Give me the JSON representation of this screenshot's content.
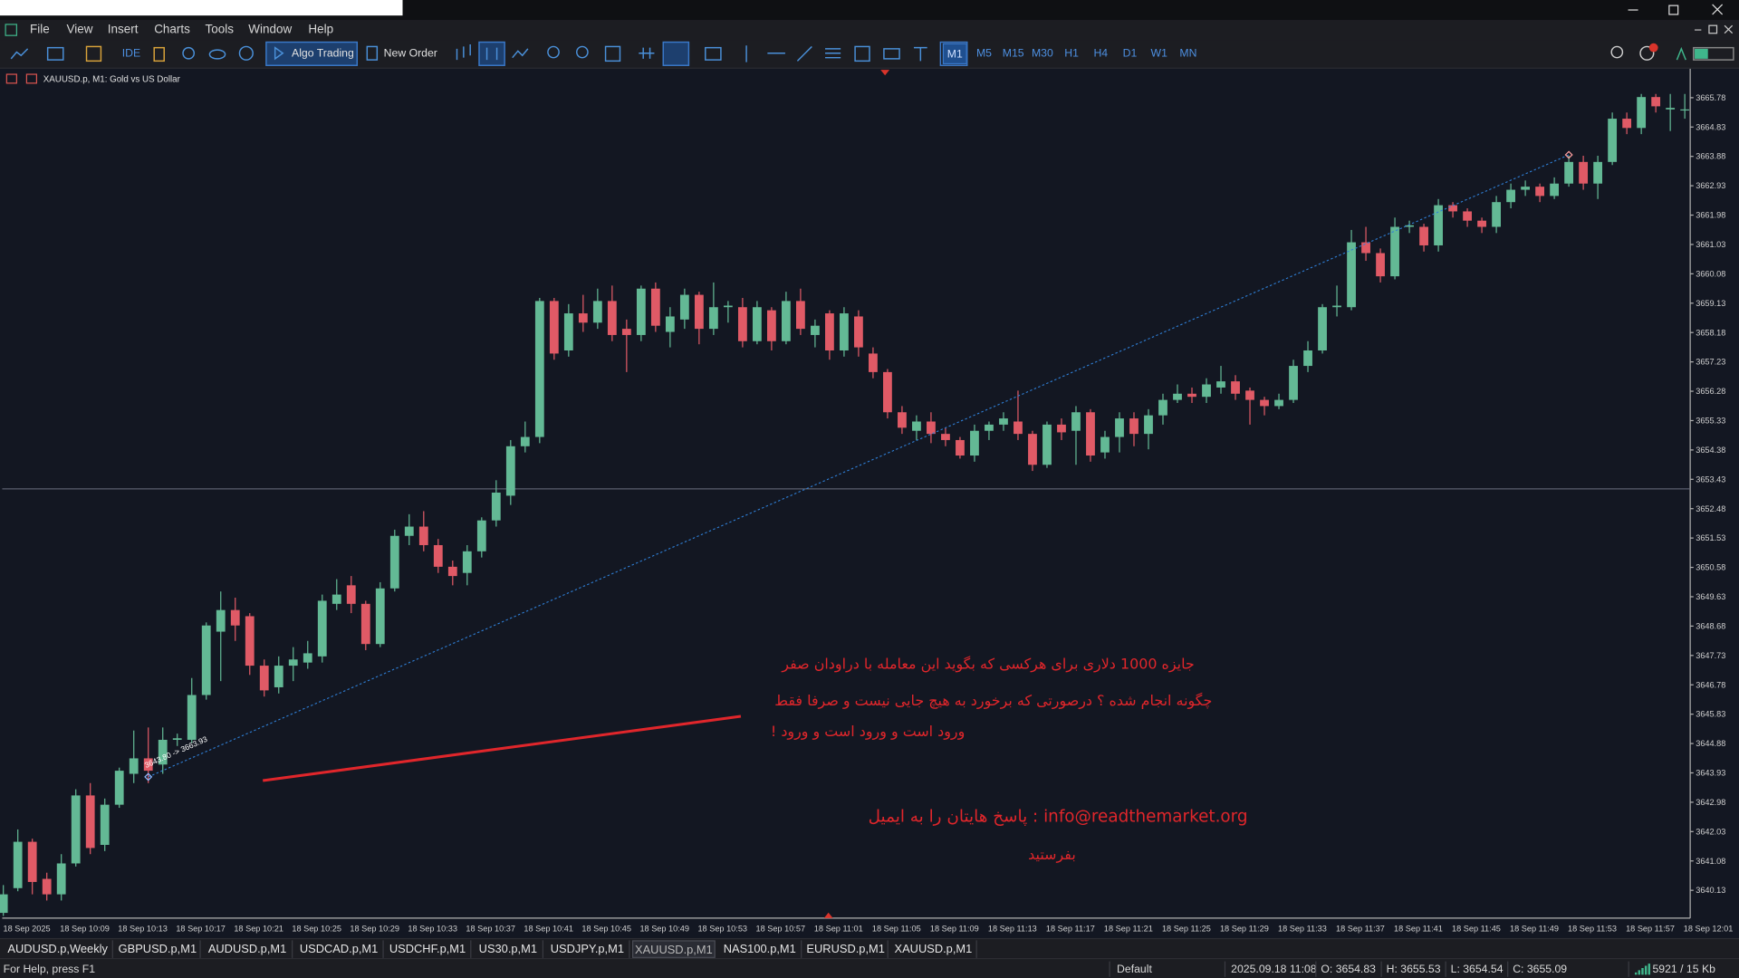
{
  "window": {
    "menu": [
      "File",
      "View",
      "Insert",
      "Charts",
      "Tools",
      "Window",
      "Help"
    ]
  },
  "toolbar": {
    "ide": "IDE",
    "algo_trading": "Algo Trading",
    "new_order": "New Order",
    "timeframes": [
      "M1",
      "M5",
      "M15",
      "M30",
      "H1",
      "H4",
      "D1",
      "W1",
      "MN"
    ],
    "active_timeframe": 0
  },
  "chart_data": {
    "type": "candlestick",
    "title": "XAUUSD.p, M1: Gold vs US Dollar",
    "up_color": "#63b995",
    "down_color": "#e05a66",
    "grid": false,
    "ylim": [
      3639.23,
      3666.68
    ],
    "yticks": [
      3665.78,
      3664.83,
      3663.88,
      3662.93,
      3661.98,
      3661.03,
      3660.08,
      3659.13,
      3658.18,
      3657.23,
      3656.28,
      3655.33,
      3654.38,
      3653.43,
      3652.48,
      3651.53,
      3650.58,
      3649.63,
      3648.68,
      3647.73,
      3646.78,
      3645.83,
      3644.88,
      3643.93,
      3642.98,
      3642.03,
      3641.08,
      3640.13
    ],
    "categories": [
      null,
      null,
      "18 Sep 2025",
      null,
      null,
      null,
      "18 Sep 10:09",
      null,
      null,
      null,
      "18 Sep 10:13",
      null,
      null,
      null,
      "18 Sep 10:17",
      null,
      null,
      null,
      "18 Sep 10:21",
      null,
      null,
      null,
      "18 Sep 10:25",
      null,
      null,
      null,
      "18 Sep 10:29",
      null,
      null,
      null,
      "18 Sep 10:33",
      null,
      null,
      null,
      "18 Sep 10:37",
      null,
      null,
      null,
      "18 Sep 10:41",
      null,
      null,
      null,
      "18 Sep 10:45",
      null,
      null,
      null,
      "18 Sep 10:49",
      null,
      null,
      null,
      "18 Sep 10:53",
      null,
      null,
      null,
      "18 Sep 10:57",
      null,
      null,
      null,
      "18 Sep 11:01",
      null,
      null,
      null,
      "18 Sep 11:05",
      null,
      null,
      null,
      "18 Sep 11:09",
      null,
      null,
      null,
      "18 Sep 11:13",
      null,
      null,
      null,
      "18 Sep 11:17",
      null,
      null,
      null,
      "18 Sep 11:21",
      null,
      null,
      null,
      "18 Sep 11:25",
      null,
      null,
      null,
      "18 Sep 11:29",
      null,
      null,
      null,
      "18 Sep 11:33",
      null,
      null,
      null,
      "18 Sep 11:37",
      null,
      null,
      null,
      "18 Sep 11:41",
      null,
      null,
      null,
      "18 Sep 11:45",
      null,
      null,
      null,
      "18 Sep 11:49",
      null,
      null,
      null,
      "18 Sep 11:53",
      null,
      null,
      null,
      "18 Sep 11:57",
      null,
      null,
      null,
      "18 Sep 12:01"
    ],
    "open": [
      3639.4,
      3640.2,
      3641.7,
      3640.5,
      3640.0,
      3641.0,
      3643.2,
      3641.6,
      3642.9,
      3643.9,
      3644.4,
      3644.2,
      3645.0,
      3645.0,
      3646.45,
      3648.5,
      3649.2,
      3649.0,
      3647.4,
      3646.7,
      3647.4,
      3647.5,
      3647.7,
      3649.4,
      3650.0,
      3649.4,
      3648.1,
      3649.9,
      3651.6,
      3651.9,
      3651.3,
      3650.6,
      3650.4,
      3651.1,
      3652.1,
      3652.9,
      3654.5,
      3654.8,
      3659.2,
      3657.6,
      3658.8,
      3658.5,
      3659.2,
      3658.3,
      3658.1,
      3659.6,
      3658.2,
      3658.6,
      3659.4,
      3658.3,
      3659.0,
      3659.0,
      3657.9,
      3658.9,
      3657.9,
      3659.2,
      3658.1,
      3658.8,
      3657.6,
      3658.7,
      3657.5,
      3656.9,
      3655.6,
      3655.0,
      3655.3,
      3654.9,
      3654.7,
      3654.2,
      3655.0,
      3655.2,
      3655.3,
      3654.9,
      3653.9,
      3655.2,
      3655.0,
      3655.6,
      3654.3,
      3654.8,
      3655.4,
      3654.9,
      3655.5,
      3656.0,
      3656.2,
      3656.1,
      3656.4,
      3656.6,
      3656.3,
      3656.0,
      3655.8,
      3656.0,
      3657.1,
      3657.6,
      3659.0,
      3659.0,
      3661.1,
      3660.75,
      3660.0,
      3661.6,
      3661.6,
      3661.0,
      3662.3,
      3662.1,
      3661.8,
      3661.6,
      3662.4,
      3662.8,
      3662.9,
      3662.6,
      3663.0,
      3663.7,
      3663.0,
      3663.7,
      3665.1,
      3664.8,
      3665.8,
      3665.4,
      3665.4,
      null,
      null
    ],
    "high": [
      3640.3,
      3642.1,
      3641.8,
      3640.7,
      3641.3,
      3643.4,
      3643.6,
      3643.1,
      3644.1,
      3645.3,
      3645.4,
      3645.4,
      3645.2,
      3647.0,
      3648.8,
      3649.8,
      3649.6,
      3649.1,
      3647.6,
      3647.7,
      3648.0,
      3648.2,
      3649.7,
      3650.2,
      3650.3,
      3649.5,
      3650.1,
      3651.8,
      3652.3,
      3652.4,
      3651.5,
      3650.8,
      3651.3,
      3652.2,
      3653.4,
      3654.7,
      3655.3,
      3659.3,
      3659.3,
      3659.1,
      3659.4,
      3659.6,
      3659.7,
      3658.6,
      3659.7,
      3659.8,
      3659.0,
      3659.6,
      3659.5,
      3659.8,
      3659.2,
      3659.3,
      3659.2,
      3659.0,
      3659.5,
      3659.6,
      3658.6,
      3658.9,
      3659.0,
      3658.9,
      3657.7,
      3657.0,
      3655.8,
      3655.5,
      3655.6,
      3655.1,
      3654.8,
      3655.2,
      3655.3,
      3655.6,
      3656.3,
      3655.0,
      3655.3,
      3655.4,
      3655.8,
      3655.7,
      3655.0,
      3655.6,
      3655.6,
      3655.7,
      3656.2,
      3656.5,
      3656.4,
      3656.7,
      3657.1,
      3656.8,
      3656.4,
      3656.1,
      3656.2,
      3657.3,
      3657.9,
      3659.1,
      3659.7,
      3661.5,
      3661.6,
      3660.9,
      3661.9,
      3661.8,
      3661.7,
      3662.5,
      3662.4,
      3662.2,
      3661.9,
      3662.6,
      3663.0,
      3663.1,
      3663.0,
      3663.2,
      3663.9,
      3663.9,
      3663.9,
      3665.3,
      3665.3,
      3665.9,
      3665.9,
      3665.9,
      3665.9,
      null,
      null
    ],
    "low": [
      3639.3,
      3640.1,
      3640.0,
      3639.8,
      3639.8,
      3640.9,
      3641.3,
      3641.4,
      3642.8,
      3643.6,
      3643.6,
      3643.9,
      3644.8,
      3644.9,
      3646.3,
      3646.9,
      3648.2,
      3647.1,
      3646.4,
      3646.5,
      3646.9,
      3647.3,
      3647.5,
      3649.2,
      3649.1,
      3647.9,
      3648.0,
      3649.8,
      3651.3,
      3651.1,
      3650.4,
      3650.0,
      3650.0,
      3650.9,
      3651.9,
      3652.6,
      3654.3,
      3654.6,
      3657.3,
      3657.4,
      3658.2,
      3658.3,
      3657.9,
      3656.9,
      3657.9,
      3658.2,
      3657.7,
      3658.3,
      3657.8,
      3658.1,
      3658.5,
      3657.7,
      3657.8,
      3657.6,
      3657.8,
      3658.1,
      3657.7,
      3657.3,
      3657.4,
      3657.4,
      3656.7,
      3655.4,
      3654.9,
      3654.7,
      3654.6,
      3654.5,
      3654.1,
      3654.0,
      3654.7,
      3655.0,
      3654.7,
      3653.7,
      3653.8,
      3654.7,
      3653.9,
      3654.0,
      3654.1,
      3654.3,
      3654.5,
      3654.4,
      3655.2,
      3655.9,
      3655.9,
      3655.9,
      3656.2,
      3656.0,
      3655.2,
      3655.5,
      3655.7,
      3655.9,
      3656.9,
      3657.5,
      3658.7,
      3658.9,
      3660.5,
      3659.8,
      3659.9,
      3661.4,
      3660.8,
      3660.8,
      3661.9,
      3661.6,
      3661.4,
      3661.4,
      3662.2,
      3662.6,
      3662.4,
      3662.5,
      3662.9,
      3662.8,
      3662.5,
      3663.6,
      3664.6,
      3664.6,
      3665.3,
      3664.7,
      3665.1,
      null,
      null
    ],
    "close": [
      3640.0,
      3641.7,
      3640.4,
      3640.0,
      3641.0,
      3643.2,
      3641.5,
      3642.9,
      3644.0,
      3644.4,
      3644.0,
      3645.0,
      3645.05,
      3646.45,
      3648.7,
      3649.2,
      3648.7,
      3647.4,
      3646.6,
      3647.4,
      3647.6,
      3647.8,
      3649.5,
      3649.7,
      3649.4,
      3648.1,
      3649.9,
      3651.6,
      3651.9,
      3651.3,
      3650.6,
      3650.3,
      3651.1,
      3652.1,
      3653.0,
      3654.5,
      3654.8,
      3659.2,
      3657.5,
      3658.8,
      3658.5,
      3659.2,
      3658.1,
      3658.1,
      3659.6,
      3658.4,
      3658.7,
      3659.4,
      3658.3,
      3659.0,
      3659.05,
      3657.9,
      3659.0,
      3657.9,
      3659.2,
      3658.3,
      3658.4,
      3657.6,
      3658.8,
      3657.7,
      3656.9,
      3655.6,
      3655.1,
      3655.3,
      3654.9,
      3654.7,
      3654.2,
      3655.0,
      3655.2,
      3655.4,
      3654.9,
      3653.9,
      3655.2,
      3654.95,
      3655.6,
      3654.2,
      3654.8,
      3655.4,
      3654.9,
      3655.5,
      3656.0,
      3656.2,
      3656.1,
      3656.5,
      3656.6,
      3656.2,
      3656.0,
      3655.8,
      3656.0,
      3657.1,
      3657.6,
      3659.0,
      3659.05,
      3661.1,
      3660.75,
      3660.0,
      3661.6,
      3661.65,
      3661.0,
      3662.3,
      3662.1,
      3661.8,
      3661.6,
      3662.4,
      3662.8,
      3662.9,
      3662.6,
      3663.0,
      3663.7,
      3663.0,
      3663.7,
      3665.1,
      3664.8,
      3665.8,
      3665.5,
      3665.45,
      3665.4,
      null,
      null
    ],
    "price_line": 3653.12,
    "trendline": {
      "start_index": 10,
      "start": 3643.8,
      "end_index": 108,
      "end": 3663.93,
      "label": "3643.80 -> 3663.93",
      "color": "#2f7fd6"
    },
    "annotations": [
      "جایزه 1000 دلاری برای هرکسی که بگوید این معامله با دراودان صفر",
      "چگونه انجام شده ؟ درصورتی که برخورد به هیچ جایی نیست و صرفا فقط",
      "ورود است و ورود است و ورود !",
      "info@readthemarket.org : پاسخ هایتان را به ایمیل",
      "بفرستید"
    ]
  },
  "tabs": {
    "items": [
      "AUDUSD.p,Weekly",
      "GBPUSD.p,M1",
      "AUDUSD.p,M1",
      "USDCAD.p,M1",
      "USDCHF.p,M1",
      "US30.p,M1",
      "USDJPY.p,M1",
      "XAUUSD.p,M1",
      "NAS100.p,M1",
      "EURUSD.p,M1",
      "XAUUSD.p,M1"
    ],
    "active": 7
  },
  "status": {
    "help": "For Help, press F1",
    "profile": "Default",
    "time": "2025.09.18 11:08",
    "open": "O: 3654.83",
    "high": "H: 3655.53",
    "low": "L: 3654.54",
    "close": "C: 3655.09",
    "traffic": "5921 / 15 Kb"
  }
}
